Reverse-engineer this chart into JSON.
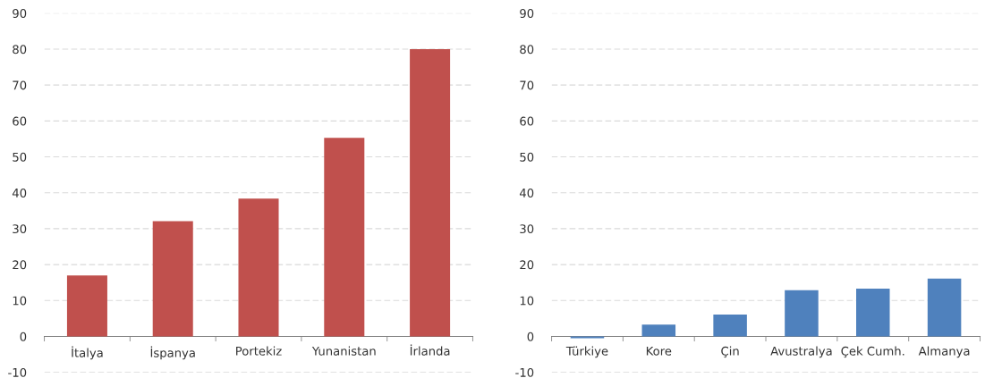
{
  "chart_data": [
    {
      "type": "bar",
      "categories": [
        "İtalya",
        "İspanya",
        "Portekiz",
        "Yunanistan",
        "İrlanda"
      ],
      "values": [
        17,
        32.1,
        38.4,
        55.3,
        80
      ],
      "color": "#c0504d",
      "ylim": [
        -10,
        90
      ],
      "yticks": [
        -10,
        0,
        10,
        20,
        30,
        40,
        50,
        60,
        70,
        80,
        90
      ],
      "grid": "y"
    },
    {
      "type": "bar",
      "categories": [
        "Türkiye",
        "Kore",
        "Çin",
        "Avustralya",
        "Çek Cumh.",
        "Almanya"
      ],
      "values": [
        -0.5,
        3.3,
        6.1,
        12.9,
        13.3,
        16.1
      ],
      "color": "#4f81bd",
      "ylim": [
        -10,
        90
      ],
      "yticks": [
        -10,
        0,
        10,
        20,
        30,
        40,
        50,
        60,
        70,
        80,
        90
      ],
      "grid": "y"
    }
  ]
}
